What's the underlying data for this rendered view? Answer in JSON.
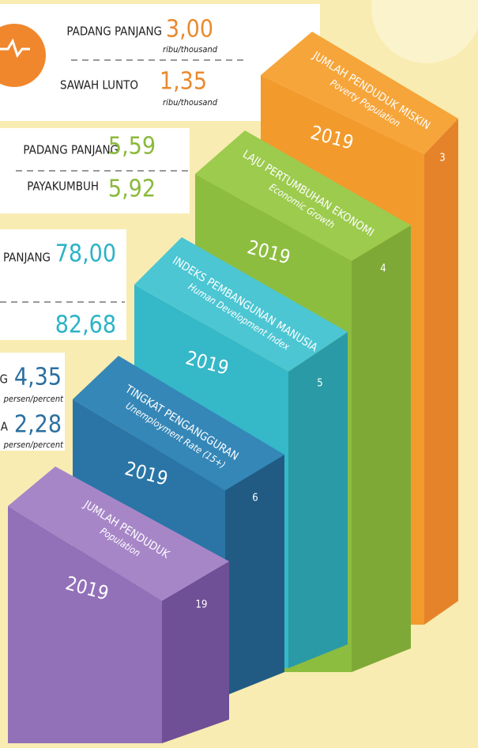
{
  "panels": [
    {
      "rows": [
        {
          "label": "PADANG PANJANG",
          "value": "3,00",
          "unit": "ribu/thousand"
        },
        {
          "label": "SAWAH LUNTO",
          "value": "1,35",
          "unit": "ribu/thousand"
        }
      ]
    },
    {
      "rows": [
        {
          "label": "PADANG PANJANG",
          "value": "5,59"
        },
        {
          "label": "PAYAKUMBUH",
          "value": "5,92"
        }
      ]
    },
    {
      "rows": [
        {
          "label": "PANJANG",
          "value": "78,00"
        },
        {
          "value": "82,68"
        }
      ]
    },
    {
      "rows": [
        {
          "label": "G",
          "value": "4,35",
          "unit": "persen/percent"
        },
        {
          "label": "A",
          "value": "2,28",
          "unit": "persen/percent"
        }
      ]
    }
  ],
  "steps": [
    {
      "title": "JUMLAH PENDUDUK MISKIN",
      "subtitle": "Poverty Population",
      "year": "2019",
      "side": "3"
    },
    {
      "title": "LAJU PERTUMBUHAN EKONOMI",
      "subtitle": "Economic Growth",
      "year": "2019",
      "side": "4"
    },
    {
      "title": "INDEKS PEMBANGUNAN MANUSIA",
      "subtitle": "Human Development Index",
      "year": "2019",
      "side": "5"
    },
    {
      "title": "TINGKAT PENGANGGURAN",
      "subtitle": "Unemployment Rate (15+)",
      "year": "2019",
      "side": "6"
    },
    {
      "title": "JUMLAH PENDUDUK",
      "subtitle": "Population",
      "year": "2019",
      "side": "19"
    }
  ]
}
